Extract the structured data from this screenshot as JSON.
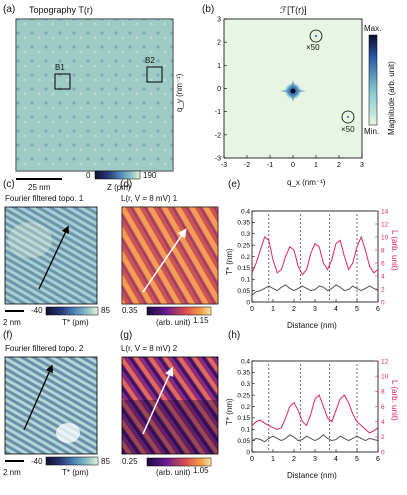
{
  "panels": {
    "a": {
      "label": "(a)",
      "title": "Topography T(r)",
      "box1": "B1",
      "box2": "B2",
      "scalebar": "25 nm",
      "cbar_min": "0",
      "cbar_max": "190",
      "cbar_label": "Z (pm)",
      "colors": [
        "#0d1030",
        "#2a3b7a",
        "#4f86b6",
        "#8fc2c7",
        "#e6f2d6"
      ]
    },
    "b": {
      "label": "(b)",
      "title": "ℱ[T(r)]",
      "ylabel": "q_y (nm⁻¹)",
      "xlabel": "q_x (nm⁻¹)",
      "x_ticks": [
        "-3",
        "-2",
        "-1",
        "0",
        "1",
        "2",
        "3"
      ],
      "y_ticks": [
        "3",
        "2",
        "1",
        "0",
        "-1",
        "-2",
        "-3"
      ],
      "mag1": "×50",
      "mag2": "×50",
      "cbar_max": "Max.",
      "cbar_min": "Min.",
      "cbar_label": "Magnitude (arb. unit)"
    },
    "c": {
      "label": "(c)",
      "title": "Fourier filtered topo. 1",
      "scalebar": "2 nm",
      "cbar_min": "-40",
      "cbar_max": "85",
      "cbar_label": "T* (pm)"
    },
    "d": {
      "label": "(d)",
      "title": "L(r, V = 8 mV) 1",
      "cbar_min": "0.35",
      "cbar_max": "1.15",
      "cbar_label": "(arb. unit)"
    },
    "e": {
      "label": "(e)",
      "xlabel": "Distance (nm)",
      "ylabel_left": "T* (nm)",
      "ylabel_right": "L (arb. unit)"
    },
    "f": {
      "label": "(f)",
      "title": "Fourier filtered topo. 2",
      "scalebar": "2 nm",
      "cbar_min": "-40",
      "cbar_max": "85",
      "cbar_label": "T* (pm)"
    },
    "g": {
      "label": "(g)",
      "title": "L(r, V = 8 mV) 2",
      "cbar_min": "0.25",
      "cbar_max": "1.05",
      "cbar_label": "(arb. unit)"
    },
    "h": {
      "label": "(h)",
      "xlabel": "Distance (nm)",
      "ylabel_left": "T* (nm)",
      "ylabel_right": "L (arb. unit)"
    }
  },
  "chart_data": [
    {
      "type": "line",
      "panel": "e",
      "xlim": [
        0,
        6
      ],
      "ylim_left": [
        0,
        0.4
      ],
      "ylim_right": [
        0,
        14
      ],
      "x_ticks": [
        "0",
        "1",
        "2",
        "3",
        "4",
        "5",
        "6"
      ],
      "y_ticks_left": [
        "0",
        "0.05",
        "0.1",
        "0.15",
        "0.2",
        "0.25",
        "0.3",
        "0.35",
        "0.4"
      ],
      "y_ticks_right": [
        "0",
        "2",
        "4",
        "6",
        "8",
        "10",
        "12",
        "14"
      ],
      "series": [
        {
          "axis": "left",
          "color": "#555555",
          "x": [
            0,
            0.2,
            0.4,
            0.6,
            0.8,
            1.0,
            1.2,
            1.4,
            1.6,
            1.8,
            2.0,
            2.2,
            2.4,
            2.6,
            2.8,
            3.0,
            3.2,
            3.4,
            3.6,
            3.8,
            4.0,
            4.2,
            4.4,
            4.6,
            4.8,
            5.0,
            5.2,
            5.4,
            5.6,
            5.8,
            6.0
          ],
          "y": [
            0.03,
            0.045,
            0.05,
            0.06,
            0.07,
            0.06,
            0.05,
            0.065,
            0.075,
            0.06,
            0.05,
            0.06,
            0.07,
            0.06,
            0.05,
            0.055,
            0.07,
            0.065,
            0.05,
            0.06,
            0.075,
            0.065,
            0.05,
            0.055,
            0.07,
            0.06,
            0.05,
            0.06,
            0.07,
            0.06,
            0.05
          ]
        },
        {
          "axis": "right",
          "color": "#e0245e",
          "x": [
            0,
            0.2,
            0.4,
            0.6,
            0.8,
            1.0,
            1.2,
            1.4,
            1.6,
            1.8,
            2.0,
            2.2,
            2.4,
            2.6,
            2.8,
            3.0,
            3.2,
            3.4,
            3.6,
            3.8,
            4.0,
            4.2,
            4.4,
            4.6,
            4.8,
            5.0,
            5.2,
            5.4,
            5.6,
            5.8,
            6.0
          ],
          "y": [
            4.5,
            6.0,
            8.0,
            10.0,
            9.5,
            6.5,
            4.5,
            5.0,
            7.0,
            8.5,
            8.0,
            5.5,
            4.2,
            5.0,
            7.5,
            9.0,
            8.5,
            6.0,
            5.0,
            6.5,
            9.0,
            9.5,
            7.0,
            5.0,
            6.0,
            8.5,
            10.0,
            8.0,
            5.5,
            4.5,
            5.0
          ]
        }
      ],
      "dashed_x": [
        0.8,
        2.3,
        3.7,
        5.0
      ]
    },
    {
      "type": "line",
      "panel": "h",
      "xlim": [
        0,
        6
      ],
      "ylim_left": [
        0,
        0.4
      ],
      "ylim_right": [
        0,
        12
      ],
      "x_ticks": [
        "0",
        "1",
        "2",
        "3",
        "4",
        "5",
        "6"
      ],
      "y_ticks_left": [
        "0",
        "0.05",
        "0.1",
        "0.15",
        "0.2",
        "0.25",
        "0.3",
        "0.35",
        "0.4"
      ],
      "y_ticks_right": [
        "0",
        "2",
        "4",
        "6",
        "8",
        "10",
        "12"
      ],
      "series": [
        {
          "axis": "left",
          "color": "#555555",
          "x": [
            0,
            0.2,
            0.4,
            0.6,
            0.8,
            1.0,
            1.2,
            1.4,
            1.6,
            1.8,
            2.0,
            2.2,
            2.4,
            2.6,
            2.8,
            3.0,
            3.2,
            3.4,
            3.6,
            3.8,
            4.0,
            4.2,
            4.4,
            4.6,
            4.8,
            5.0,
            5.2,
            5.4,
            5.6,
            5.8,
            6.0
          ],
          "y": [
            0.05,
            0.06,
            0.055,
            0.045,
            0.06,
            0.07,
            0.06,
            0.05,
            0.06,
            0.075,
            0.065,
            0.05,
            0.055,
            0.07,
            0.06,
            0.05,
            0.06,
            0.075,
            0.06,
            0.05,
            0.055,
            0.07,
            0.06,
            0.05,
            0.06,
            0.07,
            0.06,
            0.05,
            0.06,
            0.055,
            0.05
          ]
        },
        {
          "axis": "right",
          "color": "#e0245e",
          "x": [
            0,
            0.2,
            0.4,
            0.6,
            0.8,
            1.0,
            1.2,
            1.4,
            1.6,
            1.8,
            2.0,
            2.2,
            2.4,
            2.6,
            2.8,
            3.0,
            3.2,
            3.4,
            3.6,
            3.8,
            4.0,
            4.2,
            4.4,
            4.6,
            4.8,
            5.0,
            5.2,
            5.4,
            5.6,
            5.8,
            6.0
          ],
          "y": [
            3.5,
            4.0,
            4.2,
            3.8,
            3.5,
            3.2,
            3.0,
            3.2,
            4.5,
            6.0,
            6.5,
            5.5,
            4.0,
            3.5,
            5.0,
            7.0,
            7.5,
            6.0,
            4.5,
            4.0,
            5.5,
            7.0,
            7.5,
            6.5,
            5.0,
            4.0,
            3.5,
            3.0,
            2.5,
            2.8,
            3.2
          ]
        }
      ],
      "dashed_x": [
        0.8,
        2.3,
        3.7,
        5.0
      ]
    }
  ]
}
